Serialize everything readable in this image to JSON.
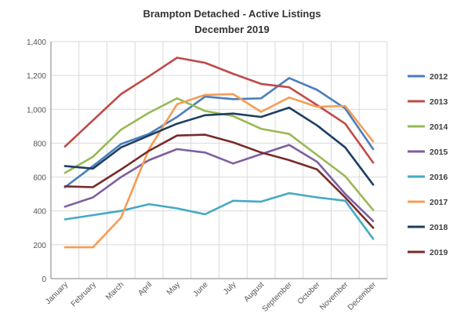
{
  "chart_data": {
    "type": "line",
    "title": "Brampton Detached - Active Listings",
    "subtitle": "December 2019",
    "xlabel": "",
    "ylabel": "",
    "categories": [
      "January",
      "February",
      "March",
      "April",
      "May",
      "June",
      "July",
      "August",
      "September",
      "October",
      "November",
      "December"
    ],
    "ylim": [
      0,
      1400
    ],
    "yticks": [
      0,
      200,
      400,
      600,
      800,
      1000,
      1200,
      1400
    ],
    "ytick_labels": [
      "0",
      "200",
      "400",
      "600",
      "800",
      "1,000",
      "1,200",
      "1,400"
    ],
    "grid": true,
    "legend_position": "right",
    "series": [
      {
        "name": "2012",
        "color": "#4a7ebb",
        "values": [
          540,
          665,
          795,
          855,
          955,
          1075,
          1060,
          1065,
          1185,
          1115,
          1005,
          765
        ]
      },
      {
        "name": "2013",
        "color": "#be4b48",
        "values": [
          780,
          935,
          1090,
          1195,
          1305,
          1275,
          1210,
          1150,
          1130,
          1025,
          915,
          685
        ]
      },
      {
        "name": "2014",
        "color": "#98b954",
        "values": [
          625,
          720,
          880,
          980,
          1065,
          990,
          960,
          885,
          855,
          730,
          605,
          405
        ]
      },
      {
        "name": "2015",
        "color": "#7d5fa0",
        "values": [
          425,
          480,
          600,
          700,
          765,
          745,
          680,
          735,
          790,
          690,
          500,
          340
        ]
      },
      {
        "name": "2016",
        "color": "#46aac4",
        "values": [
          350,
          375,
          400,
          440,
          415,
          380,
          460,
          455,
          505,
          480,
          460,
          235
        ]
      },
      {
        "name": "2017",
        "color": "#f59d56",
        "values": [
          185,
          185,
          360,
          765,
          1030,
          1085,
          1090,
          985,
          1070,
          1015,
          1020,
          810
        ]
      },
      {
        "name": "2018",
        "color": "#1f3f62",
        "values": [
          665,
          650,
          775,
          845,
          915,
          965,
          975,
          955,
          1010,
          905,
          775,
          555
        ]
      },
      {
        "name": "2019",
        "color": "#772c2a",
        "values": [
          545,
          540,
          645,
          755,
          845,
          850,
          805,
          745,
          700,
          645,
          480,
          300
        ]
      }
    ]
  }
}
